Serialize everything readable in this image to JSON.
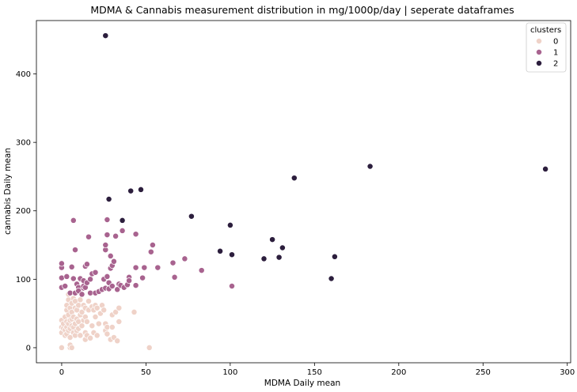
{
  "chart_data": {
    "type": "scatter",
    "title": "MDMA & Cannabis measurement distribution in mg/1000p/day | seperate dataframes",
    "xlabel": "MDMA Daily mean",
    "ylabel": "cannabis Daily mean",
    "xlim": [
      -15,
      302
    ],
    "ylim": [
      -22,
      478
    ],
    "xticks": [
      0,
      50,
      100,
      150,
      200,
      250,
      300
    ],
    "yticks": [
      0,
      100,
      200,
      300,
      400
    ],
    "grid": false,
    "legend": {
      "title": "clusters",
      "placement": "top-right"
    },
    "series": [
      {
        "name": "0",
        "color": "#efd2c8",
        "points": [
          [
            0,
            0
          ],
          [
            0,
            22
          ],
          [
            0,
            30
          ],
          [
            0,
            40
          ],
          [
            1,
            28
          ],
          [
            1,
            35
          ],
          [
            2,
            18
          ],
          [
            2,
            26
          ],
          [
            2,
            45
          ],
          [
            3,
            20
          ],
          [
            3,
            30
          ],
          [
            3,
            38
          ],
          [
            3,
            55
          ],
          [
            3,
            62
          ],
          [
            4,
            25
          ],
          [
            4,
            35
          ],
          [
            4,
            48
          ],
          [
            4,
            70
          ],
          [
            4,
            78
          ],
          [
            5,
            0
          ],
          [
            5,
            4
          ],
          [
            5,
            15
          ],
          [
            5,
            28
          ],
          [
            5,
            40
          ],
          [
            5,
            58
          ],
          [
            6,
            0
          ],
          [
            6,
            32
          ],
          [
            6,
            42
          ],
          [
            6,
            52
          ],
          [
            6,
            65
          ],
          [
            7,
            22
          ],
          [
            7,
            30
          ],
          [
            7,
            45
          ],
          [
            7,
            72
          ],
          [
            8,
            18
          ],
          [
            8,
            35
          ],
          [
            8,
            58
          ],
          [
            8,
            68
          ],
          [
            9,
            25
          ],
          [
            9,
            42
          ],
          [
            9,
            55
          ],
          [
            10,
            28
          ],
          [
            10,
            38
          ],
          [
            10,
            62
          ],
          [
            11,
            18
          ],
          [
            11,
            48
          ],
          [
            11,
            70
          ],
          [
            12,
            32
          ],
          [
            12,
            52
          ],
          [
            12,
            78
          ],
          [
            13,
            40
          ],
          [
            13,
            62
          ],
          [
            14,
            12
          ],
          [
            14,
            22
          ],
          [
            14,
            45
          ],
          [
            14,
            58
          ],
          [
            15,
            18
          ],
          [
            15,
            38
          ],
          [
            16,
            55
          ],
          [
            16,
            68
          ],
          [
            17,
            14
          ],
          [
            18,
            32
          ],
          [
            18,
            60
          ],
          [
            19,
            22
          ],
          [
            19,
            55
          ],
          [
            20,
            45
          ],
          [
            20,
            62
          ],
          [
            21,
            18
          ],
          [
            21,
            58
          ],
          [
            22,
            35
          ],
          [
            23,
            50
          ],
          [
            24,
            62
          ],
          [
            25,
            55
          ],
          [
            26,
            25
          ],
          [
            26,
            35
          ],
          [
            27,
            30
          ],
          [
            27,
            20
          ],
          [
            29,
            12
          ],
          [
            30,
            30
          ],
          [
            30,
            48
          ],
          [
            31,
            15
          ],
          [
            32,
            52
          ],
          [
            33,
            10
          ],
          [
            34,
            38
          ],
          [
            34,
            58
          ],
          [
            43,
            52
          ],
          [
            52,
            0
          ]
        ]
      },
      {
        "name": "1",
        "color": "#a8638f",
        "points": [
          [
            0,
            88
          ],
          [
            0,
            102
          ],
          [
            0,
            117
          ],
          [
            0,
            123
          ],
          [
            2,
            90
          ],
          [
            3,
            104
          ],
          [
            5,
            80
          ],
          [
            6,
            118
          ],
          [
            7,
            101
          ],
          [
            7,
            186
          ],
          [
            8,
            80
          ],
          [
            8,
            143
          ],
          [
            9,
            93
          ],
          [
            10,
            88
          ],
          [
            10,
            83
          ],
          [
            11,
            100
          ],
          [
            11,
            101
          ],
          [
            12,
            78
          ],
          [
            13,
            87
          ],
          [
            13,
            90
          ],
          [
            13,
            98
          ],
          [
            14,
            88
          ],
          [
            14,
            119
          ],
          [
            15,
            122
          ],
          [
            15,
            95
          ],
          [
            16,
            162
          ],
          [
            17,
            80
          ],
          [
            17,
            100
          ],
          [
            18,
            108
          ],
          [
            20,
            110
          ],
          [
            20,
            80
          ],
          [
            22,
            82
          ],
          [
            24,
            85
          ],
          [
            25,
            100
          ],
          [
            26,
            87
          ],
          [
            26,
            143
          ],
          [
            26,
            150
          ],
          [
            27,
            104
          ],
          [
            27,
            187
          ],
          [
            27,
            165
          ],
          [
            28,
            95
          ],
          [
            28,
            86
          ],
          [
            29,
            116
          ],
          [
            29,
            134
          ],
          [
            30,
            90
          ],
          [
            30,
            120
          ],
          [
            31,
            126
          ],
          [
            32,
            163
          ],
          [
            33,
            85
          ],
          [
            34,
            93
          ],
          [
            35,
            91
          ],
          [
            36,
            171
          ],
          [
            37,
            88
          ],
          [
            39,
            92
          ],
          [
            40,
            103
          ],
          [
            40,
            98
          ],
          [
            44,
            117
          ],
          [
            44,
            91
          ],
          [
            44,
            166
          ],
          [
            48,
            102
          ],
          [
            49,
            117
          ],
          [
            53,
            140
          ],
          [
            54,
            150
          ],
          [
            57,
            117
          ],
          [
            66,
            124
          ],
          [
            67,
            103
          ],
          [
            73,
            130
          ],
          [
            83,
            113
          ],
          [
            101,
            90
          ]
        ]
      },
      {
        "name": "2",
        "color": "#2c1e3d",
        "points": [
          [
            26,
            456
          ],
          [
            28,
            217
          ],
          [
            36,
            186
          ],
          [
            41,
            229
          ],
          [
            47,
            231
          ],
          [
            77,
            192
          ],
          [
            94,
            141
          ],
          [
            100,
            179
          ],
          [
            101,
            136
          ],
          [
            120,
            130
          ],
          [
            125,
            158
          ],
          [
            129,
            132
          ],
          [
            131,
            146
          ],
          [
            138,
            248
          ],
          [
            160,
            101
          ],
          [
            162,
            133
          ],
          [
            183,
            265
          ],
          [
            287,
            261
          ]
        ]
      }
    ]
  }
}
